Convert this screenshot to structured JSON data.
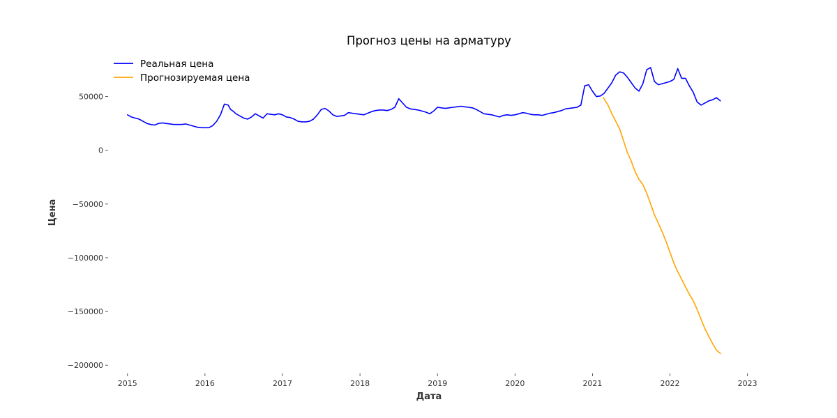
{
  "chart_data": {
    "type": "line",
    "title": "Прогноз цены на арматуру",
    "xlabel": "Дата",
    "ylabel": "Цена",
    "xlim": [
      2014.75,
      2023.3
    ],
    "ylim": [
      -207000,
      88000
    ],
    "grid": false,
    "legend_position": "top-left",
    "x_ticks": [
      {
        "value": 2015,
        "label": "2015"
      },
      {
        "value": 2016,
        "label": "2016"
      },
      {
        "value": 2017,
        "label": "2017"
      },
      {
        "value": 2018,
        "label": "2018"
      },
      {
        "value": 2019,
        "label": "2019"
      },
      {
        "value": 2020,
        "label": "2020"
      },
      {
        "value": 2021,
        "label": "2021"
      },
      {
        "value": 2022,
        "label": "2022"
      },
      {
        "value": 2023,
        "label": "2023"
      }
    ],
    "y_ticks": [
      {
        "value": 50000,
        "label": "50000"
      },
      {
        "value": 0,
        "label": "0"
      },
      {
        "value": -50000,
        "label": "−50000"
      },
      {
        "value": -100000,
        "label": "−100000"
      },
      {
        "value": -150000,
        "label": "−150000"
      },
      {
        "value": -200000,
        "label": "−200000"
      }
    ],
    "series": [
      {
        "name": "Реальная цена",
        "color": "#0000ff",
        "x": [
          2015.0,
          2015.05,
          2015.1,
          2015.15,
          2015.2,
          2015.25,
          2015.3,
          2015.35,
          2015.4,
          2015.45,
          2015.5,
          2015.55,
          2015.6,
          2015.65,
          2015.7,
          2015.75,
          2015.8,
          2015.85,
          2015.9,
          2015.95,
          2016.0,
          2016.05,
          2016.1,
          2016.15,
          2016.2,
          2016.25,
          2016.3,
          2016.33,
          2016.37,
          2016.4,
          2016.45,
          2016.5,
          2016.55,
          2016.6,
          2016.65,
          2016.7,
          2016.75,
          2016.8,
          2016.85,
          2016.9,
          2016.95,
          2017.0,
          2017.05,
          2017.1,
          2017.15,
          2017.2,
          2017.25,
          2017.3,
          2017.35,
          2017.4,
          2017.45,
          2017.5,
          2017.55,
          2017.6,
          2017.65,
          2017.7,
          2017.75,
          2017.8,
          2017.85,
          2017.9,
          2017.95,
          2018.0,
          2018.05,
          2018.1,
          2018.15,
          2018.2,
          2018.25,
          2018.3,
          2018.35,
          2018.4,
          2018.45,
          2018.5,
          2018.55,
          2018.6,
          2018.65,
          2018.7,
          2018.75,
          2018.8,
          2018.85,
          2018.9,
          2018.95,
          2019.0,
          2019.05,
          2019.1,
          2019.15,
          2019.2,
          2019.25,
          2019.3,
          2019.35,
          2019.4,
          2019.45,
          2019.5,
          2019.55,
          2019.6,
          2019.65,
          2019.7,
          2019.75,
          2019.8,
          2019.85,
          2019.9,
          2019.95,
          2020.0,
          2020.05,
          2020.1,
          2020.15,
          2020.2,
          2020.25,
          2020.3,
          2020.35,
          2020.4,
          2020.45,
          2020.5,
          2020.55,
          2020.6,
          2020.65,
          2020.7,
          2020.75,
          2020.8,
          2020.85,
          2020.9,
          2020.95,
          2021.0,
          2021.05,
          2021.1,
          2021.15,
          2021.2,
          2021.25,
          2021.3,
          2021.35,
          2021.4,
          2021.45,
          2021.5,
          2021.55,
          2021.6,
          2021.65,
          2021.7,
          2021.75,
          2021.8,
          2021.85,
          2021.9,
          2021.95,
          2022.0,
          2022.05,
          2022.1,
          2022.15,
          2022.2,
          2022.25,
          2022.3,
          2022.35,
          2022.4,
          2022.45,
          2022.5,
          2022.55,
          2022.6,
          2022.65
        ],
        "y": [
          33000,
          31000,
          30000,
          29000,
          27000,
          25000,
          24000,
          23500,
          25000,
          25500,
          25000,
          24500,
          24000,
          24000,
          24000,
          24500,
          23500,
          22500,
          21500,
          21000,
          21000,
          21000,
          23000,
          27000,
          33000,
          43000,
          42000,
          38000,
          36000,
          34000,
          32000,
          30000,
          29000,
          31000,
          34000,
          32000,
          30000,
          34000,
          33500,
          33000,
          34000,
          33000,
          31000,
          30500,
          29000,
          27000,
          26500,
          26500,
          27000,
          29000,
          33000,
          38000,
          39000,
          36500,
          33000,
          31500,
          32000,
          32500,
          35000,
          34500,
          34000,
          33500,
          33000,
          34500,
          36000,
          37000,
          37500,
          37500,
          37000,
          38000,
          40000,
          48000,
          44000,
          40000,
          38500,
          38000,
          37500,
          36500,
          35500,
          34000,
          36500,
          40000,
          39500,
          39000,
          39500,
          40000,
          40500,
          41000,
          40500,
          40000,
          39500,
          38000,
          36000,
          34000,
          33500,
          33000,
          32000,
          31000,
          32500,
          33000,
          32500,
          33000,
          34000,
          35000,
          34500,
          33500,
          33000,
          33000,
          32500,
          33500,
          34500,
          35000,
          36000,
          37000,
          38500,
          39000,
          39500,
          40000,
          42000,
          60000,
          61000,
          55000,
          50000,
          50500,
          53000,
          58000,
          63000,
          70000,
          73000,
          72000,
          68000,
          63000,
          58000,
          55000,
          62000,
          75000,
          77000,
          64000,
          61000,
          62000,
          63000,
          64000,
          66000,
          76000,
          67000,
          67000,
          60000,
          54000,
          45000,
          42000,
          44000,
          46000,
          47000,
          49000,
          46000
        ]
      },
      {
        "name": "Прогнозируемая цена",
        "color": "#ffa500",
        "x": [
          2021.14,
          2021.2,
          2021.25,
          2021.3,
          2021.35,
          2021.4,
          2021.45,
          2021.5,
          2021.55,
          2021.6,
          2021.65,
          2021.7,
          2021.75,
          2021.8,
          2021.85,
          2021.9,
          2021.95,
          2022.0,
          2022.05,
          2022.1,
          2022.15,
          2022.2,
          2022.25,
          2022.3,
          2022.35,
          2022.4,
          2022.45,
          2022.5,
          2022.55,
          2022.6,
          2022.65
        ],
        "y": [
          49000,
          42000,
          34000,
          27000,
          20000,
          9000,
          -2000,
          -10000,
          -20000,
          -27000,
          -32000,
          -40000,
          -50000,
          -60000,
          -68000,
          -76000,
          -85000,
          -95000,
          -105000,
          -113000,
          -120000,
          -127000,
          -134000,
          -140000,
          -148000,
          -157000,
          -166000,
          -173000,
          -180000,
          -186000,
          -189000
        ]
      }
    ]
  }
}
